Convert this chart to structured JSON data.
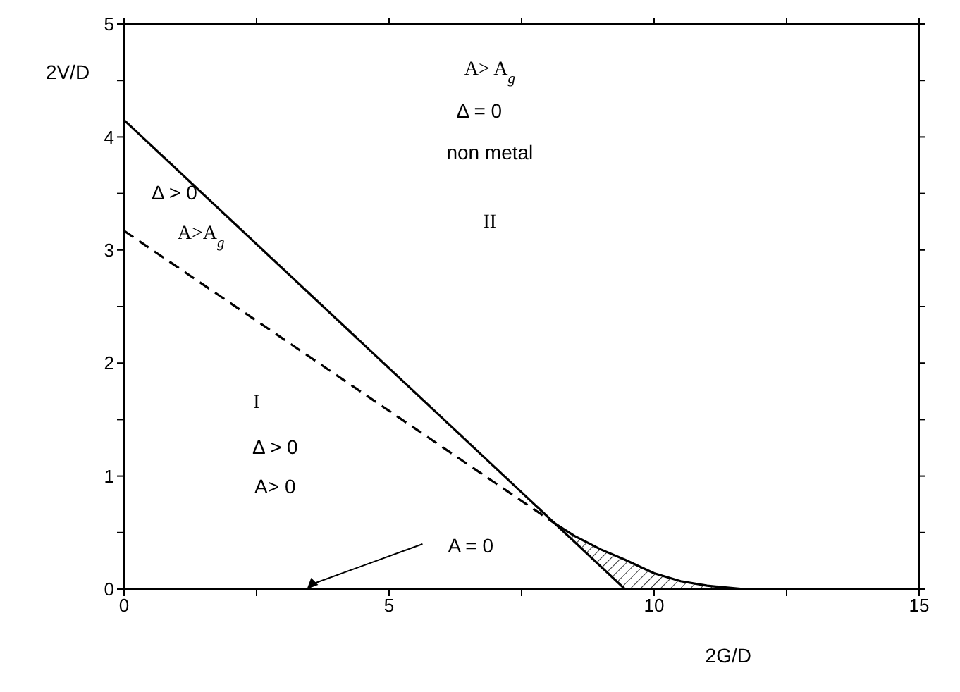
{
  "chart_data": {
    "type": "line",
    "xlabel": "2G/D",
    "ylabel": "2V/D",
    "xlim": [
      0,
      15
    ],
    "ylim": [
      0,
      5
    ],
    "xticks": [
      0,
      {
        "value": 2.5,
        "label": null
      },
      5,
      {
        "value": 7.5,
        "label": null
      },
      10,
      {
        "value": 12.5,
        "label": null
      },
      15
    ],
    "yticks": [
      0,
      {
        "value": 0.5,
        "label": null
      },
      1,
      {
        "value": 1.5,
        "label": null
      },
      2,
      {
        "value": 2.5,
        "label": null
      },
      3,
      {
        "value": 3.5,
        "label": null
      },
      4,
      {
        "value": 4.5,
        "label": null
      },
      5
    ],
    "marker": "none",
    "series": [
      {
        "color": "#000000",
        "line_style": "solid",
        "x": [
          0,
          9.45
        ],
        "values": [
          4.15,
          0
        ]
      },
      {
        "color": "#000000",
        "line_style": "dashed",
        "x": [
          0,
          8.13
        ],
        "values": [
          3.17,
          0.58
        ]
      },
      {
        "color": "#000000",
        "line_style": "solid",
        "x": [
          8.13,
          8.5,
          9,
          9.45,
          10,
          10.5,
          11,
          11.7
        ],
        "values": [
          0.58,
          0.47,
          0.35,
          0.26,
          0.14,
          0.07,
          0.03,
          0
        ],
        "lower": [
          0.58,
          0.42,
          0.2,
          0,
          0,
          0,
          0,
          0
        ],
        "upper": [
          0.58,
          0.47,
          0.35,
          0.26,
          0.14,
          0.07,
          0.03,
          0
        ]
      }
    ],
    "annotations": [
      "A> A$_{g}$",
      "Δ =  0",
      "non metal",
      "II",
      "Δ > 0",
      "A>A$_{g}$",
      "I",
      "Δ > 0",
      "A> 0",
      "A =  0"
    ]
  }
}
